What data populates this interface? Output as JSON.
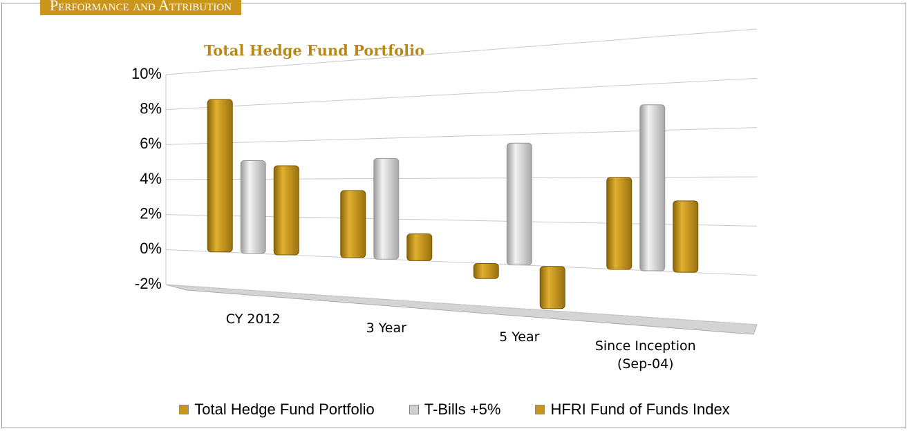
{
  "header": "Performance and Attribution",
  "chart_data": {
    "type": "bar",
    "title": "Total Hedge Fund Portfolio",
    "categories": [
      "CY 2012",
      "3 Year",
      "5 Year",
      "Since Inception (Sep-04)"
    ],
    "series": [
      {
        "name": "Total Hedge Fund Portfolio",
        "color": "#c9961a",
        "values": [
          8.4,
          3.4,
          -0.7,
          4.0
        ]
      },
      {
        "name": "T-Bills +5%",
        "color": "#cfcfcf",
        "values": [
          5.0,
          5.0,
          5.6,
          7.1
        ]
      },
      {
        "name": "HFRI Fund of Funds Index",
        "color": "#c9961a",
        "values": [
          4.7,
          1.3,
          -1.9,
          3.0
        ]
      }
    ],
    "ylim": [
      -2,
      10
    ],
    "yticks": [
      {
        "value": -2,
        "label": "-2%"
      },
      {
        "value": 0,
        "label": "0%"
      },
      {
        "value": 2,
        "label": "2%"
      },
      {
        "value": 4,
        "label": "4%"
      },
      {
        "value": 6,
        "label": "6%"
      },
      {
        "value": 8,
        "label": "8%"
      },
      {
        "value": 10,
        "label": "10%"
      }
    ],
    "grid": true,
    "legend": "bottom"
  }
}
